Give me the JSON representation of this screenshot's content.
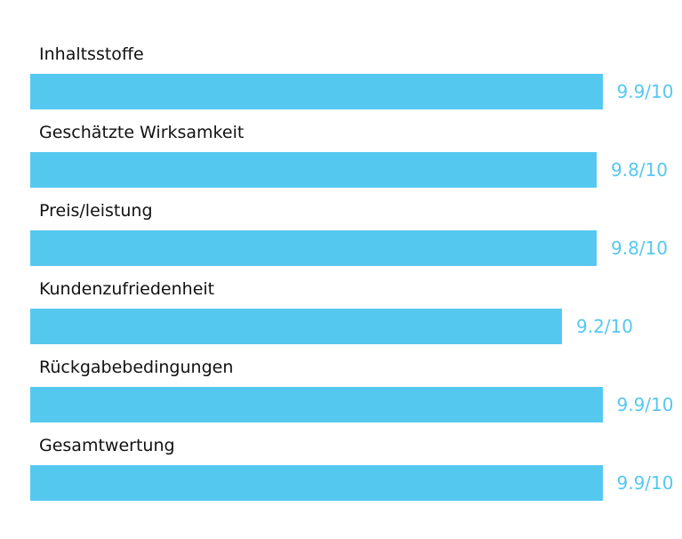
{
  "accent_color": "#55c8f0",
  "chart_data": {
    "type": "bar",
    "orientation": "horizontal",
    "categories": [
      "Inhaltsstoffe",
      "Geschätzte Wirksamkeit",
      "Preis/leistung",
      "Kundenzufriedenheit",
      "Rückgabebedingungen",
      "Gesamtwertung"
    ],
    "values": [
      9.9,
      9.8,
      9.8,
      9.2,
      9.9,
      9.9
    ],
    "value_labels": [
      "9.9/10",
      "9.8/10",
      "9.8/10",
      "9.2/10",
      "9.9/10",
      "9.9/10"
    ],
    "xlim": [
      0,
      10
    ],
    "grid": false,
    "legend": "none"
  }
}
